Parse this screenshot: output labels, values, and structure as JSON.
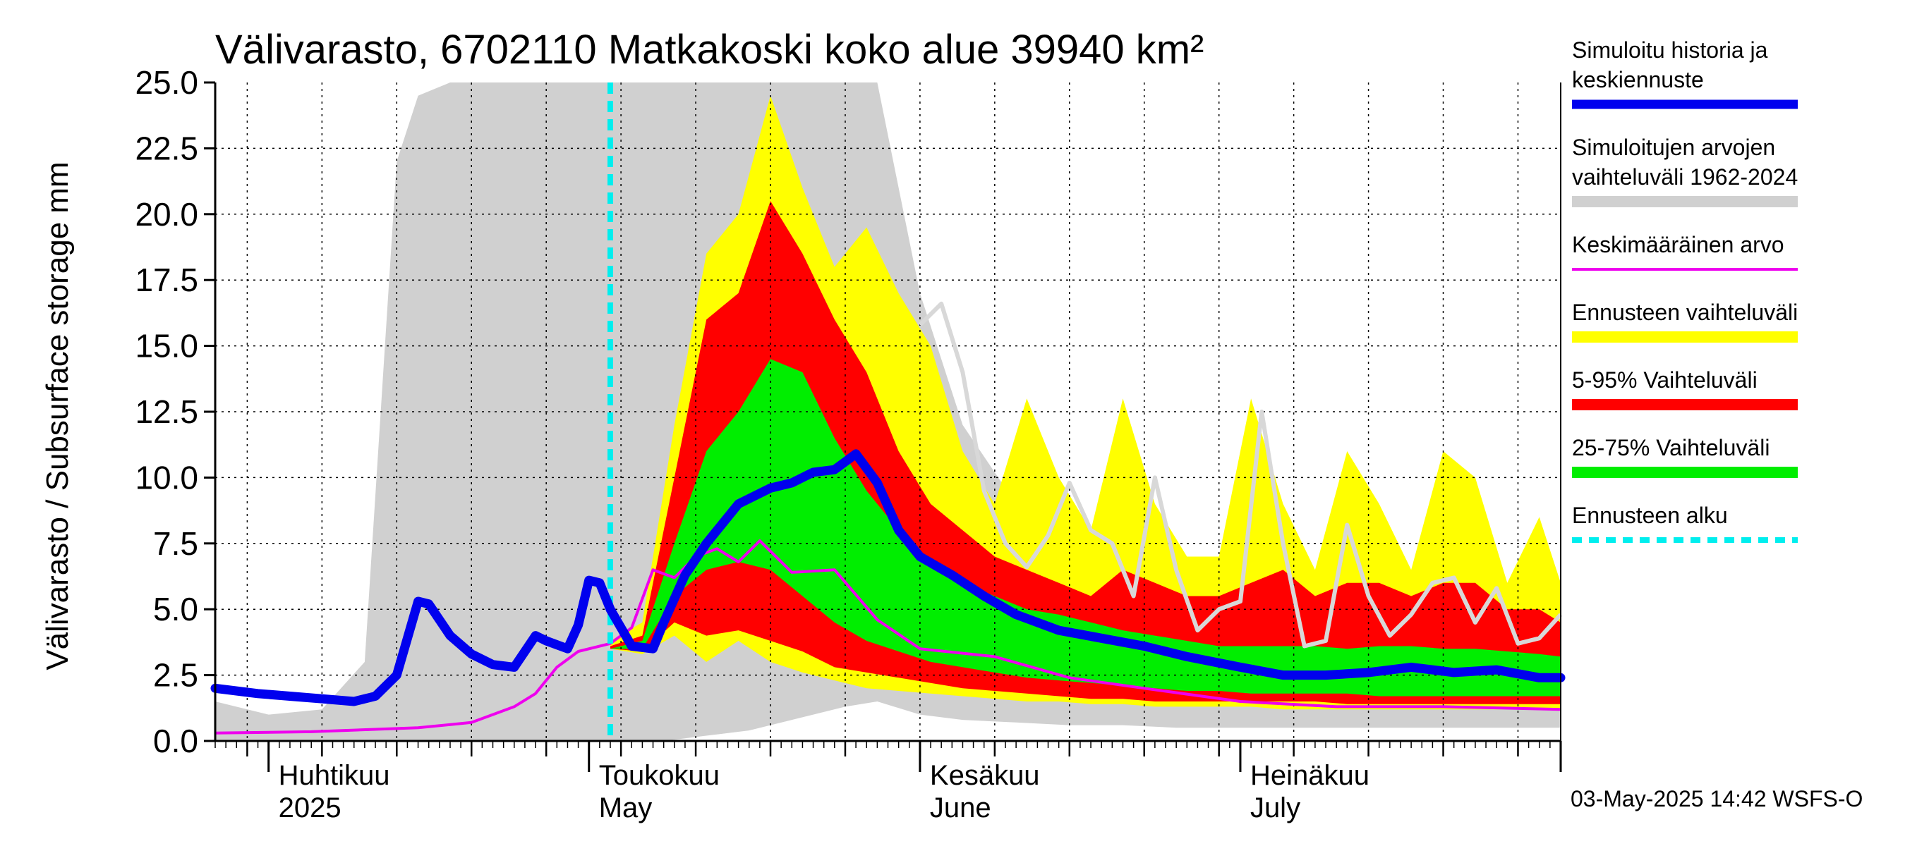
{
  "chart_data": {
    "type": "area",
    "title": "Välivarasto, 6702110 Matkakoski koko alue 39940 km²",
    "ylabel": "Välivarasto / Subsurface storage  mm",
    "ylim": [
      0,
      25
    ],
    "yticks": [
      "0.0",
      "2.5",
      "5.0",
      "7.5",
      "10.0",
      "12.5",
      "15.0",
      "17.5",
      "20.0",
      "22.5",
      "25.0"
    ],
    "x_range": [
      "2025-03-27",
      "2025-07-31"
    ],
    "month_labels": [
      {
        "fi": "Huhtikuu",
        "en": "2025",
        "date": "2025-04-01"
      },
      {
        "fi": "Toukokuu",
        "en": "May",
        "date": "2025-05-01"
      },
      {
        "fi": "Kesäkuu",
        "en": "June",
        "date": "2025-06-01"
      },
      {
        "fi": "Heinäkuu",
        "en": "July",
        "date": "2025-07-01"
      }
    ],
    "forecast_start": "2025-05-03",
    "footer": "03-May-2025 14:42 WSFS-O",
    "legend": [
      {
        "label_lines": [
          "Simuloitu historia ja",
          "keskiennuste"
        ],
        "color": "#0000ee",
        "style": "thick"
      },
      {
        "label_lines": [
          "Simuloitujen arvojen",
          "vaihteluväli 1962-2024"
        ],
        "color": "#d0d0d0",
        "style": "band"
      },
      {
        "label_lines": [
          "Keskimääräinen arvo"
        ],
        "color": "#ee00ee",
        "style": "thin"
      },
      {
        "label_lines": [
          "Ennusteen vaihteluväli"
        ],
        "color": "#ffff00",
        "style": "band"
      },
      {
        "label_lines": [
          "5-95% Vaihteluväli"
        ],
        "color": "#ff0000",
        "style": "band"
      },
      {
        "label_lines": [
          "25-75% Vaihteluväli"
        ],
        "color": "#00ee00",
        "style": "band"
      },
      {
        "label_lines": [
          "Ennusteen alku"
        ],
        "color": "#00eeee",
        "style": "dashed"
      }
    ],
    "bands": {
      "historical_range": {
        "x": [
          "2025-03-27",
          "2025-04-01",
          "2025-04-06",
          "2025-04-10",
          "2025-04-13",
          "2025-04-15",
          "2025-04-18",
          "2025-04-22",
          "2025-04-26",
          "2025-04-30",
          "2025-05-04",
          "2025-05-08",
          "2025-05-12",
          "2025-05-16",
          "2025-05-20",
          "2025-05-25",
          "2025-05-28",
          "2025-06-01",
          "2025-06-05",
          "2025-06-10",
          "2025-06-15",
          "2025-06-20",
          "2025-06-25",
          "2025-07-01",
          "2025-07-10",
          "2025-07-20",
          "2025-07-31"
        ],
        "upper": [
          1.5,
          1.0,
          1.2,
          3.0,
          22.0,
          24.5,
          25.0,
          25.0,
          25.0,
          25.0,
          25.0,
          25.0,
          25.0,
          25.0,
          25.0,
          25.0,
          25.0,
          17.0,
          12.0,
          9.0,
          7.0,
          5.5,
          4.5,
          4.0,
          3.5,
          3.0,
          2.8
        ],
        "lower": [
          0.0,
          0.0,
          0.0,
          0.0,
          0.0,
          0.0,
          0.0,
          0.0,
          0.0,
          0.0,
          0.0,
          0.0,
          0.2,
          0.4,
          0.8,
          1.3,
          1.5,
          1.0,
          0.8,
          0.7,
          0.6,
          0.6,
          0.5,
          0.5,
          0.5,
          0.5,
          0.5
        ]
      },
      "forecast_range": {
        "x": [
          "2025-05-03",
          "2025-05-06",
          "2025-05-09",
          "2025-05-12",
          "2025-05-15",
          "2025-05-18",
          "2025-05-21",
          "2025-05-24",
          "2025-05-27",
          "2025-05-30",
          "2025-06-02",
          "2025-06-05",
          "2025-06-08",
          "2025-06-11",
          "2025-06-14",
          "2025-06-17",
          "2025-06-20",
          "2025-06-23",
          "2025-06-26",
          "2025-06-29",
          "2025-07-02",
          "2025-07-05",
          "2025-07-08",
          "2025-07-11",
          "2025-07-14",
          "2025-07-17",
          "2025-07-20",
          "2025-07-23",
          "2025-07-26",
          "2025-07-29",
          "2025-07-31"
        ],
        "upper": [
          3.8,
          4.5,
          12.0,
          18.5,
          20.0,
          24.5,
          21.0,
          18.0,
          19.5,
          17.0,
          15.0,
          11.0,
          9.0,
          13.0,
          10.0,
          8.0,
          13.0,
          9.0,
          7.0,
          7.0,
          13.0,
          9.0,
          6.5,
          11.0,
          9.0,
          6.5,
          11.0,
          10.0,
          6.0,
          8.5,
          6.0
        ],
        "lower": [
          3.5,
          3.3,
          4.0,
          3.0,
          3.8,
          3.0,
          2.6,
          2.3,
          2.0,
          1.9,
          1.8,
          1.7,
          1.6,
          1.5,
          1.5,
          1.4,
          1.4,
          1.3,
          1.3,
          1.3,
          1.3,
          1.2,
          1.2,
          1.2,
          1.2,
          1.2,
          1.2,
          1.2,
          1.2,
          1.2,
          1.2
        ]
      },
      "p5_95": {
        "x": [
          "2025-05-03",
          "2025-05-06",
          "2025-05-09",
          "2025-05-12",
          "2025-05-15",
          "2025-05-18",
          "2025-05-21",
          "2025-05-24",
          "2025-05-27",
          "2025-05-30",
          "2025-06-02",
          "2025-06-05",
          "2025-06-08",
          "2025-06-11",
          "2025-06-14",
          "2025-06-17",
          "2025-06-20",
          "2025-06-23",
          "2025-06-26",
          "2025-06-29",
          "2025-07-02",
          "2025-07-05",
          "2025-07-08",
          "2025-07-11",
          "2025-07-14",
          "2025-07-17",
          "2025-07-20",
          "2025-07-23",
          "2025-07-26",
          "2025-07-29",
          "2025-07-31"
        ],
        "upper": [
          3.6,
          4.0,
          10.0,
          16.0,
          17.0,
          20.5,
          18.5,
          16.0,
          14.0,
          11.0,
          9.0,
          8.0,
          7.0,
          6.5,
          6.0,
          5.5,
          6.5,
          6.0,
          5.5,
          5.5,
          6.0,
          6.5,
          5.5,
          6.0,
          6.0,
          5.5,
          6.0,
          6.0,
          5.0,
          5.0,
          4.5
        ],
        "lower": [
          3.5,
          3.4,
          4.5,
          4.0,
          4.2,
          3.8,
          3.4,
          2.8,
          2.6,
          2.4,
          2.2,
          2.0,
          1.9,
          1.8,
          1.7,
          1.6,
          1.6,
          1.5,
          1.5,
          1.5,
          1.5,
          1.5,
          1.5,
          1.4,
          1.4,
          1.4,
          1.4,
          1.4,
          1.4,
          1.4,
          1.4
        ]
      },
      "p25_75": {
        "x": [
          "2025-05-03",
          "2025-05-06",
          "2025-05-09",
          "2025-05-12",
          "2025-05-15",
          "2025-05-18",
          "2025-05-21",
          "2025-05-24",
          "2025-05-27",
          "2025-05-30",
          "2025-06-02",
          "2025-06-05",
          "2025-06-08",
          "2025-06-11",
          "2025-06-14",
          "2025-06-17",
          "2025-06-20",
          "2025-06-23",
          "2025-06-26",
          "2025-06-29",
          "2025-07-02",
          "2025-07-05",
          "2025-07-08",
          "2025-07-11",
          "2025-07-14",
          "2025-07-17",
          "2025-07-20",
          "2025-07-23",
          "2025-07-26",
          "2025-07-29",
          "2025-07-31"
        ],
        "upper": [
          3.5,
          3.8,
          7.5,
          11.0,
          12.5,
          14.5,
          14.0,
          11.5,
          9.5,
          8.0,
          6.8,
          6.0,
          5.5,
          5.0,
          4.8,
          4.5,
          4.2,
          4.0,
          3.8,
          3.6,
          3.6,
          3.6,
          3.6,
          3.5,
          3.6,
          3.6,
          3.5,
          3.5,
          3.4,
          3.3,
          3.2
        ],
        "lower": [
          3.5,
          3.5,
          5.5,
          6.5,
          6.8,
          6.5,
          5.5,
          4.5,
          3.8,
          3.4,
          3.0,
          2.8,
          2.6,
          2.4,
          2.3,
          2.2,
          2.1,
          2.0,
          1.9,
          1.9,
          1.8,
          1.8,
          1.8,
          1.8,
          1.7,
          1.7,
          1.7,
          1.7,
          1.7,
          1.7,
          1.7
        ]
      }
    },
    "series": [
      {
        "name": "Simuloitu historia ja keskiennuste",
        "x": [
          "2025-03-27",
          "2025-03-31",
          "2025-04-03",
          "2025-04-06",
          "2025-04-09",
          "2025-04-11",
          "2025-04-13",
          "2025-04-15",
          "2025-04-16",
          "2025-04-18",
          "2025-04-20",
          "2025-04-22",
          "2025-04-24",
          "2025-04-26",
          "2025-04-27",
          "2025-04-29",
          "2025-04-30",
          "2025-05-01",
          "2025-05-02",
          "2025-05-03",
          "2025-05-05",
          "2025-05-07",
          "2025-05-08",
          "2025-05-10",
          "2025-05-12",
          "2025-05-15",
          "2025-05-18",
          "2025-05-20",
          "2025-05-22",
          "2025-05-24",
          "2025-05-26",
          "2025-05-28",
          "2025-05-30",
          "2025-06-01",
          "2025-06-04",
          "2025-06-07",
          "2025-06-10",
          "2025-06-14",
          "2025-06-18",
          "2025-06-22",
          "2025-06-26",
          "2025-07-01",
          "2025-07-05",
          "2025-07-09",
          "2025-07-13",
          "2025-07-17",
          "2025-07-21",
          "2025-07-25",
          "2025-07-29",
          "2025-07-31"
        ],
        "values": [
          2.0,
          1.8,
          1.7,
          1.6,
          1.5,
          1.7,
          2.5,
          5.3,
          5.2,
          4.0,
          3.3,
          2.9,
          2.8,
          4.0,
          3.8,
          3.5,
          4.4,
          6.1,
          6.0,
          5.0,
          3.6,
          3.5,
          4.5,
          6.3,
          7.5,
          9.0,
          9.6,
          9.8,
          10.2,
          10.3,
          10.9,
          9.8,
          8.0,
          7.0,
          6.3,
          5.5,
          4.8,
          4.2,
          3.9,
          3.6,
          3.2,
          2.8,
          2.5,
          2.5,
          2.6,
          2.8,
          2.6,
          2.7,
          2.4,
          2.4
        ]
      },
      {
        "name": "Keskimääräinen arvo",
        "x": [
          "2025-03-27",
          "2025-04-05",
          "2025-04-15",
          "2025-04-20",
          "2025-04-24",
          "2025-04-26",
          "2025-04-28",
          "2025-04-30",
          "2025-05-03",
          "2025-05-05",
          "2025-05-07",
          "2025-05-09",
          "2025-05-11",
          "2025-05-13",
          "2025-05-15",
          "2025-05-17",
          "2025-05-20",
          "2025-05-24",
          "2025-05-28",
          "2025-06-01",
          "2025-06-08",
          "2025-06-15",
          "2025-06-22",
          "2025-07-01",
          "2025-07-10",
          "2025-07-20",
          "2025-07-31"
        ],
        "values": [
          0.3,
          0.35,
          0.5,
          0.7,
          1.3,
          1.8,
          2.8,
          3.4,
          3.7,
          4.3,
          6.5,
          6.2,
          7.0,
          7.3,
          6.8,
          7.6,
          6.4,
          6.5,
          4.6,
          3.5,
          3.2,
          2.4,
          2.0,
          1.5,
          1.3,
          1.3,
          1.2
        ]
      },
      {
        "name": "",
        "x": [
          "2025-06-01",
          "2025-06-03",
          "2025-06-05",
          "2025-06-07",
          "2025-06-09",
          "2025-06-11",
          "2025-06-13",
          "2025-06-15",
          "2025-06-17",
          "2025-06-19",
          "2025-06-21",
          "2025-06-23",
          "2025-06-25",
          "2025-06-27",
          "2025-06-29",
          "2025-07-01",
          "2025-07-03",
          "2025-07-05",
          "2025-07-07",
          "2025-07-09",
          "2025-07-11",
          "2025-07-13",
          "2025-07-15",
          "2025-07-17",
          "2025-07-19",
          "2025-07-21",
          "2025-07-23",
          "2025-07-25",
          "2025-07-27",
          "2025-07-29",
          "2025-07-31"
        ],
        "values": [
          15.8,
          16.6,
          14.0,
          9.5,
          7.5,
          6.6,
          7.8,
          9.8,
          8.0,
          7.5,
          5.5,
          10.0,
          6.5,
          4.2,
          5.0,
          5.3,
          12.5,
          7.5,
          3.6,
          3.8,
          8.2,
          5.5,
          4.0,
          4.8,
          6.0,
          6.2,
          4.5,
          5.8,
          3.7,
          3.9,
          4.8
        ]
      }
    ]
  }
}
